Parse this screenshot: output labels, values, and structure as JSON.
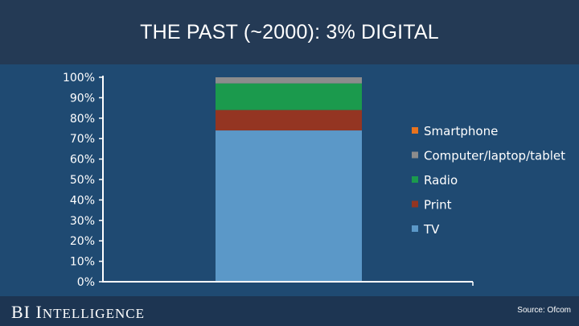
{
  "slide": {
    "title": "THE PAST (~2000): 3% DIGITAL",
    "logo_bi": "BI",
    "logo_i": "I",
    "logo_rest": "NTELLIGENCE",
    "source": "Source: Ofcom"
  },
  "chart_data": {
    "type": "bar",
    "stacked": true,
    "categories": [
      ""
    ],
    "ylim": [
      0,
      100
    ],
    "yticks": [
      "0%",
      "10%",
      "20%",
      "30%",
      "40%",
      "50%",
      "60%",
      "70%",
      "80%",
      "90%",
      "100%"
    ],
    "legend_position": "right",
    "series": [
      {
        "name": "TV",
        "values": [
          74
        ],
        "color": "#5b98c8"
      },
      {
        "name": "Print",
        "values": [
          10
        ],
        "color": "#943522"
      },
      {
        "name": "Radio",
        "values": [
          13
        ],
        "color": "#1b9a4d"
      },
      {
        "name": "Computer/laptop/tablet",
        "values": [
          3
        ],
        "color": "#8c8c8c"
      },
      {
        "name": "Smartphone",
        "values": [
          0
        ],
        "color": "#e8731e"
      }
    ],
    "legend_order": [
      "Smartphone",
      "Computer/laptop/tablet",
      "Radio",
      "Print",
      "TV"
    ]
  }
}
